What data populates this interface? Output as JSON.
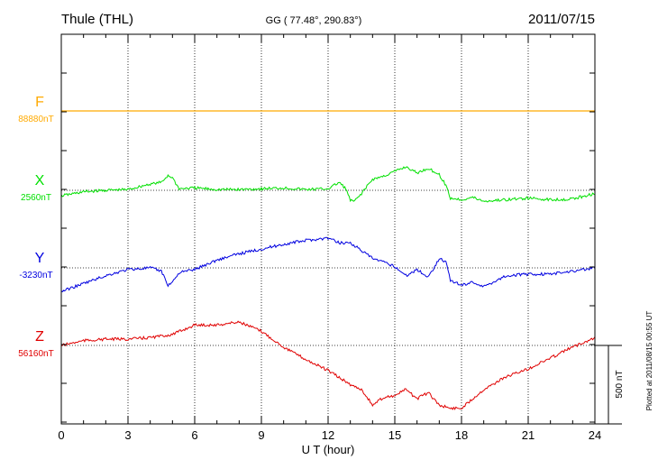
{
  "chart_data": {
    "type": "line",
    "title": "Thule (THL)",
    "subtitle": "GG ( 77.48°, 290.83°)",
    "date": "2011/07/15",
    "xlabel": "U T (hour)",
    "xlim": [
      0,
      24
    ],
    "xticks": [
      "0",
      "3",
      "6",
      "9",
      "12",
      "15",
      "18",
      "21",
      "24"
    ],
    "grid": true,
    "scale_bar": {
      "label": "500 nT",
      "value": 500
    },
    "plotted_note": "Plotted at 2011/08/15 00:55 UT",
    "series": [
      {
        "name": "F",
        "baseline_label": "88880nT",
        "color": "#ffaa00",
        "x": [
          0,
          24
        ],
        "y": [
          0,
          0
        ]
      },
      {
        "name": "X",
        "baseline_label": "2560nT",
        "color": "#00e000",
        "x": [
          0,
          1,
          2,
          3,
          4,
          4.5,
          4.8,
          5,
          5.3,
          6,
          7,
          8,
          9,
          10,
          11,
          12,
          12.5,
          12.8,
          13,
          13.2,
          13.5,
          14,
          14.5,
          15,
          15.5,
          16,
          16.5,
          17,
          17.3,
          17.5,
          18,
          18.5,
          19,
          20,
          21,
          22,
          23,
          24
        ],
        "y": [
          -35,
          -10,
          0,
          5,
          40,
          50,
          95,
          80,
          10,
          15,
          5,
          5,
          10,
          15,
          5,
          10,
          50,
          10,
          -65,
          -70,
          -20,
          70,
          90,
          120,
          150,
          110,
          140,
          100,
          30,
          -50,
          -60,
          -45,
          -70,
          -60,
          -50,
          -60,
          -55,
          -20
        ]
      },
      {
        "name": "Y",
        "baseline_label": "-3230nT",
        "color": "#0000e0",
        "x": [
          0,
          1,
          2,
          3,
          4,
          4.5,
          4.8,
          5,
          5.3,
          6,
          7,
          8,
          9,
          10,
          11,
          12,
          12.5,
          13,
          13.5,
          14,
          15,
          15.5,
          16,
          16.5,
          17,
          17.3,
          17.5,
          18,
          18.5,
          19,
          20,
          21,
          22,
          23,
          24
        ],
        "y": [
          -150,
          -100,
          -50,
          -10,
          0,
          -20,
          -110,
          -90,
          -30,
          -10,
          50,
          90,
          120,
          150,
          175,
          190,
          160,
          160,
          110,
          60,
          10,
          -50,
          -10,
          -60,
          60,
          40,
          -80,
          -110,
          -90,
          -120,
          -50,
          -40,
          -40,
          -20,
          0
        ]
      },
      {
        "name": "Z",
        "baseline_label": "56160nT",
        "color": "#e00000",
        "x": [
          0,
          1,
          2,
          3,
          4,
          5,
          6,
          7,
          8,
          9,
          10,
          11,
          12,
          13,
          13.5,
          14,
          14.5,
          15,
          15.5,
          16,
          16.5,
          17,
          17.5,
          18,
          19,
          20,
          21,
          22,
          23,
          24
        ],
        "y": [
          0,
          30,
          40,
          40,
          50,
          70,
          130,
          130,
          150,
          90,
          -10,
          -90,
          -160,
          -250,
          -280,
          -380,
          -330,
          -320,
          -280,
          -340,
          -300,
          -380,
          -400,
          -400,
          -280,
          -200,
          -150,
          -80,
          -10,
          50
        ]
      }
    ]
  }
}
